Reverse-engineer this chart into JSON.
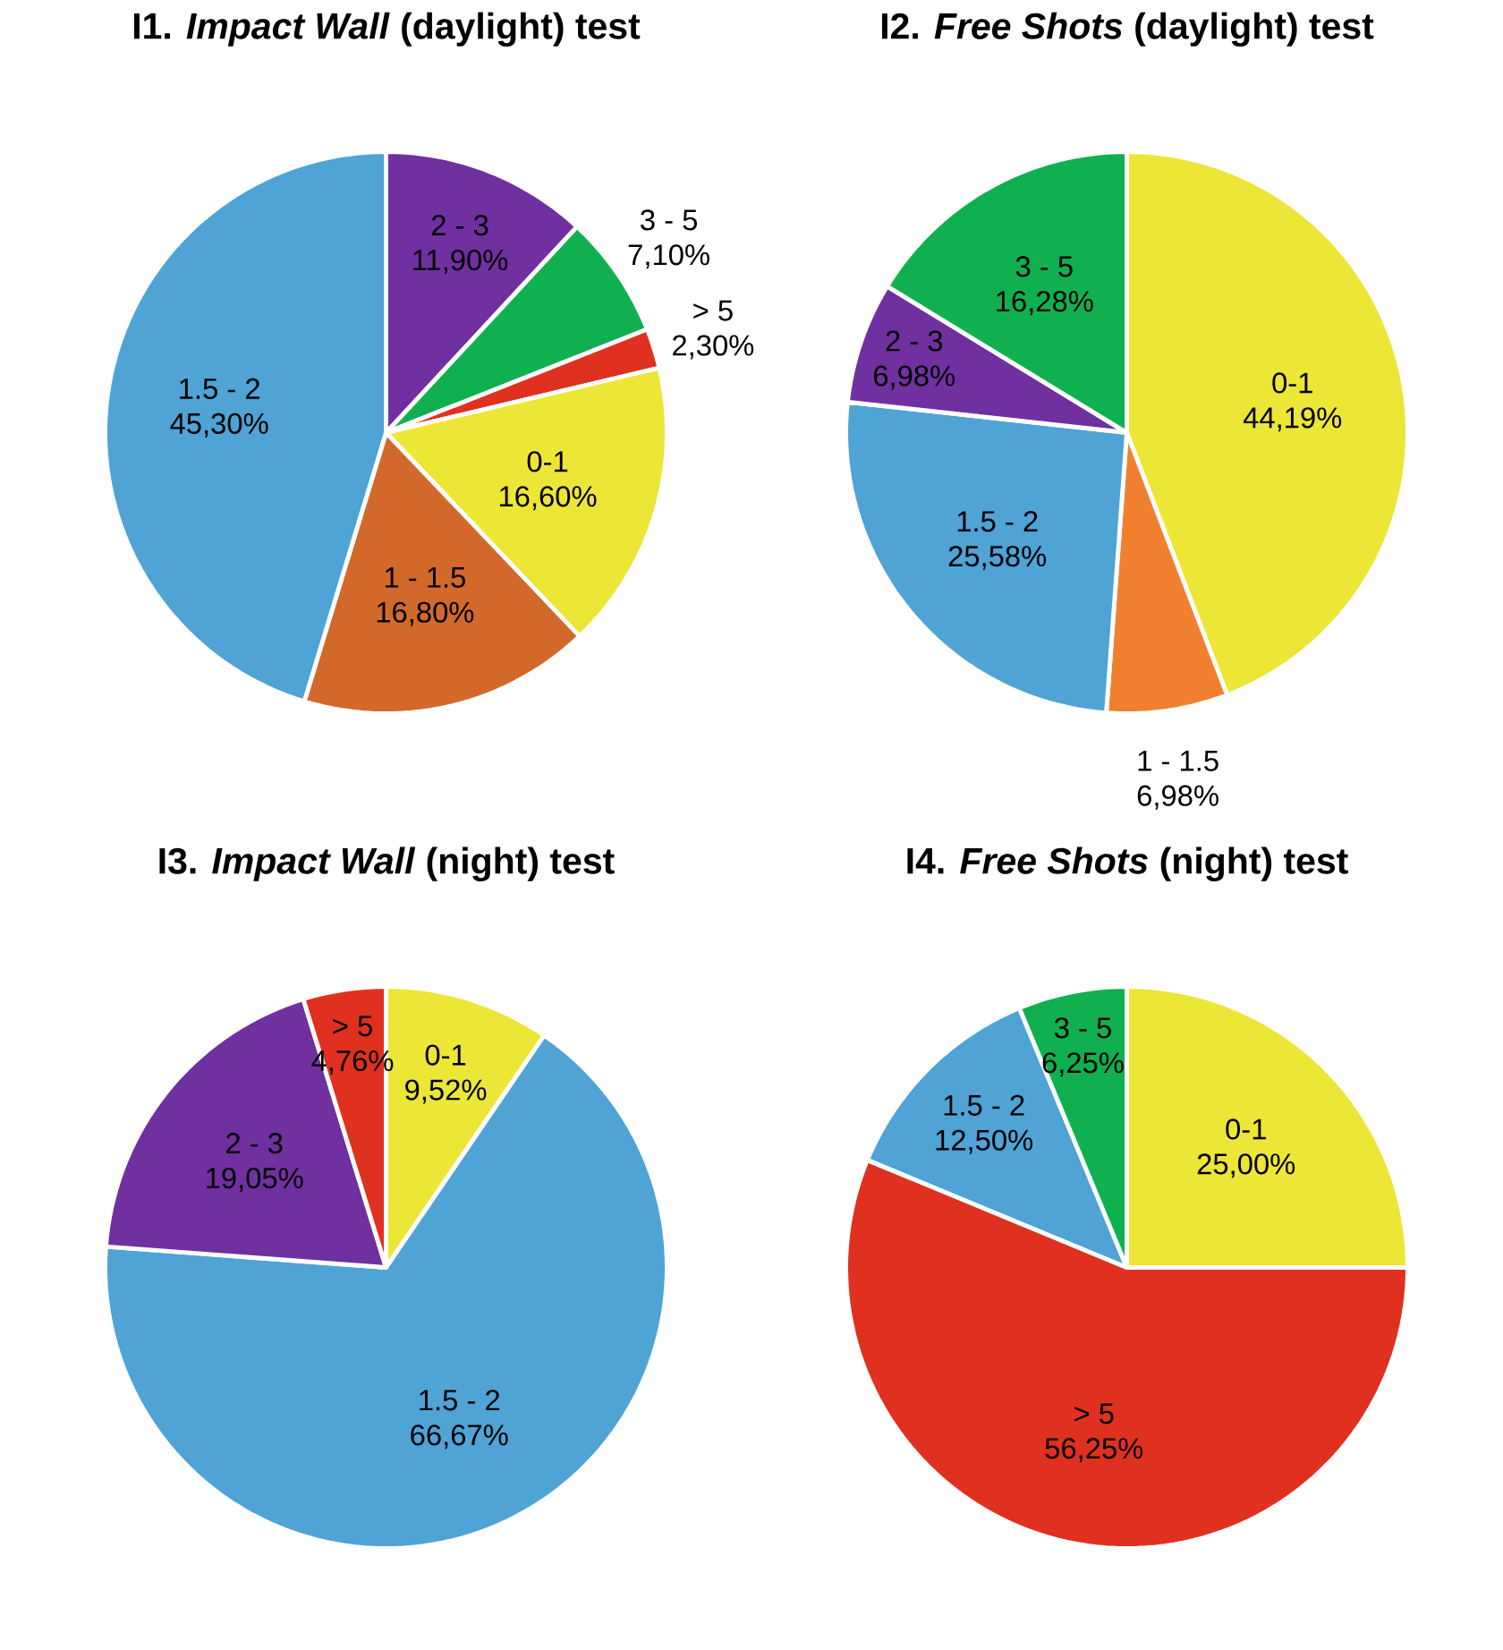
{
  "chart_data": [
    {
      "type": "pie",
      "title": "I1. *Impact Wall* (daylight) test",
      "categories": [
        "2 - 3",
        "3 - 5",
        "> 5",
        "0-1",
        "1 - 1.5",
        "1.5 - 2"
      ],
      "values": [
        11.9,
        7.1,
        2.3,
        16.6,
        16.8,
        45.3
      ],
      "value_labels": [
        "11,90%",
        "7,10%",
        "2,30%",
        "16,60%",
        "16,80%",
        "45,30%"
      ],
      "colors": [
        "#7030a0",
        "#10b050",
        "#e03020",
        "#ece636",
        "#d2692a",
        "#4fa3d5"
      ]
    },
    {
      "type": "pie",
      "title": "I2. *Free Shots* (daylight) test",
      "categories": [
        "0-1",
        "1 - 1.5",
        "1.5 - 2",
        "2 - 3",
        "3 - 5"
      ],
      "values": [
        44.19,
        6.98,
        25.58,
        6.98,
        16.28
      ],
      "value_labels": [
        "44,19%",
        "6,98%",
        "25,58%",
        "6,98%",
        "16,28%"
      ],
      "colors": [
        "#ece636",
        "#f08030",
        "#4fa3d5",
        "#7030a0",
        "#10b050"
      ]
    },
    {
      "type": "pie",
      "title": "I3.  *Impact Wall* (night) test",
      "categories": [
        "0-1",
        "1.5 - 2",
        "2 - 3",
        "> 5"
      ],
      "values": [
        9.52,
        66.67,
        19.05,
        4.76
      ],
      "value_labels": [
        "9,52%",
        "66,67%",
        "19,05%",
        "4,76%"
      ],
      "colors": [
        "#ece636",
        "#4fa3d5",
        "#7030a0",
        "#e03020"
      ]
    },
    {
      "type": "pie",
      "title": "I4. *Free Shots* (night) test",
      "categories": [
        "0-1",
        "> 5",
        "1.5 - 2",
        "3 - 5"
      ],
      "values": [
        25.0,
        56.25,
        12.5,
        6.25
      ],
      "value_labels": [
        "25,00%",
        "56,25%",
        "12,50%",
        "6,25%"
      ],
      "colors": [
        "#ece636",
        "#e03020",
        "#4fa3d5",
        "#10b050"
      ]
    }
  ]
}
